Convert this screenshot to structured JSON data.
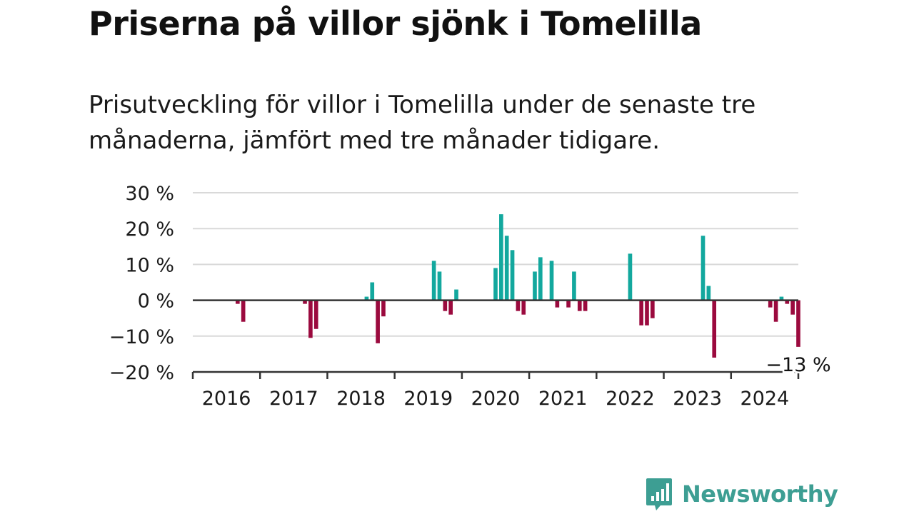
{
  "header": {
    "title": "Priserna på villor sjönk i Tomelilla",
    "subtitle": "Prisutveckling för villor i Tomelilla under de senaste tre månaderna, jämfört med tre månader tidigare."
  },
  "colors": {
    "positive": "#13a89e",
    "negative": "#9b0a3e",
    "grid": "#d9d9d9",
    "axis": "#333333",
    "text": "#111111",
    "brand": "#3d9e93"
  },
  "brand": {
    "name": "Newsworthy",
    "logo_icon": "bar-chart-speech-bubble-icon"
  },
  "chart_data": {
    "type": "bar",
    "unit": "%",
    "ylim": [
      -20,
      30
    ],
    "yticks": [
      {
        "value": 30,
        "label": "30 %"
      },
      {
        "value": 20,
        "label": "20 %"
      },
      {
        "value": 10,
        "label": "10 %"
      },
      {
        "value": 0,
        "label": "0 %"
      },
      {
        "value": -10,
        "label": "−10 %"
      },
      {
        "value": -20,
        "label": "−20 %"
      }
    ],
    "xlim": [
      "2016-01",
      "2024-12"
    ],
    "xticks": [
      "2016",
      "2017",
      "2018",
      "2019",
      "2020",
      "2021",
      "2022",
      "2023",
      "2024"
    ],
    "grid": true,
    "last_value_label": "−13 %",
    "points": [
      {
        "x": "2016-09",
        "y": -1
      },
      {
        "x": "2016-10",
        "y": -6
      },
      {
        "x": "2017-09",
        "y": -1
      },
      {
        "x": "2017-10",
        "y": -10.5
      },
      {
        "x": "2017-11",
        "y": -8
      },
      {
        "x": "2018-08",
        "y": 1
      },
      {
        "x": "2018-09",
        "y": 5
      },
      {
        "x": "2018-10",
        "y": -12
      },
      {
        "x": "2018-11",
        "y": -4.5
      },
      {
        "x": "2019-08",
        "y": 11
      },
      {
        "x": "2019-09",
        "y": 8
      },
      {
        "x": "2019-10",
        "y": -3
      },
      {
        "x": "2019-11",
        "y": -4
      },
      {
        "x": "2019-12",
        "y": 3
      },
      {
        "x": "2020-07",
        "y": 9
      },
      {
        "x": "2020-08",
        "y": 24
      },
      {
        "x": "2020-09",
        "y": 18
      },
      {
        "x": "2020-10",
        "y": 14
      },
      {
        "x": "2020-11",
        "y": -3
      },
      {
        "x": "2020-12",
        "y": -4
      },
      {
        "x": "2021-02",
        "y": 8
      },
      {
        "x": "2021-03",
        "y": 12
      },
      {
        "x": "2021-05",
        "y": 11
      },
      {
        "x": "2021-06",
        "y": -2
      },
      {
        "x": "2021-08",
        "y": -2
      },
      {
        "x": "2021-09",
        "y": 8
      },
      {
        "x": "2021-10",
        "y": -3
      },
      {
        "x": "2021-11",
        "y": -3
      },
      {
        "x": "2022-07",
        "y": 13
      },
      {
        "x": "2022-09",
        "y": -7
      },
      {
        "x": "2022-10",
        "y": -7
      },
      {
        "x": "2022-11",
        "y": -5
      },
      {
        "x": "2023-08",
        "y": 18
      },
      {
        "x": "2023-09",
        "y": 4
      },
      {
        "x": "2023-10",
        "y": -16
      },
      {
        "x": "2024-08",
        "y": -2
      },
      {
        "x": "2024-09",
        "y": -6
      },
      {
        "x": "2024-10",
        "y": 1
      },
      {
        "x": "2024-11",
        "y": -1
      },
      {
        "x": "2024-12",
        "y": -4
      },
      {
        "x": "2025-01",
        "y": -13
      }
    ]
  }
}
